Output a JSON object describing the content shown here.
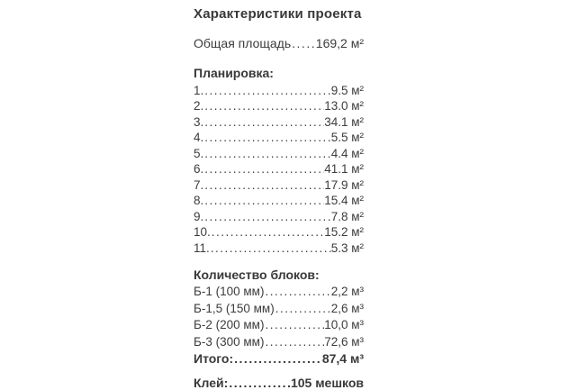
{
  "page": {
    "background_color": "#ffffff",
    "text_color": "#3c3c3c",
    "heading_color": "#3a383a"
  },
  "title": "Характеристики проекта",
  "total_area": {
    "label": "Общая площадь",
    "value": "169,2 м²"
  },
  "planning": {
    "heading": "Планировка:",
    "items": [
      {
        "label": "1.",
        "value": "9.5 м²"
      },
      {
        "label": "2.",
        "value": "13.0 м²"
      },
      {
        "label": "3.",
        "value": "34.1 м²"
      },
      {
        "label": "4.",
        "value": "5.5 м²"
      },
      {
        "label": "5.",
        "value": "4.4 м²"
      },
      {
        "label": "6.",
        "value": "41.1 м²"
      },
      {
        "label": "7.",
        "value": "17.9 м²"
      },
      {
        "label": "8.",
        "value": "15.4 м²"
      },
      {
        "label": "9.",
        "value": "7.8 м²"
      },
      {
        "label": "10.",
        "value": "15.2 м²"
      },
      {
        "label": "11.",
        "value": "5.3 м²"
      }
    ]
  },
  "blocks": {
    "heading": "Количество блоков:",
    "items": [
      {
        "label": "Б-1 (100 мм)",
        "value": "2,2 м³"
      },
      {
        "label": "Б-1,5 (150 мм)",
        "value": "2,6 м³"
      },
      {
        "label": "Б-2 (200 мм)",
        "value": "10,0 м³"
      },
      {
        "label": "Б-3 (300 мм)",
        "value": "72,6 м³"
      }
    ],
    "total": {
      "label": "Итого:",
      "value": "87,4 м³"
    }
  },
  "glue": {
    "label": "Клей:",
    "value": "105 мешков"
  }
}
